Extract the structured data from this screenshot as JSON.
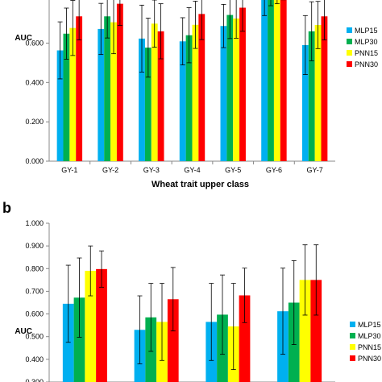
{
  "chart_data": [
    {
      "type": "bar",
      "panel": "",
      "categories": [
        "GY-1",
        "GY-2",
        "GY-3",
        "GY-4",
        "GY-5",
        "GY-6",
        "GY-7"
      ],
      "series": [
        {
          "name": "MLP15",
          "color": "#00b0f0",
          "values": [
            0.563,
            0.672,
            0.623,
            0.609,
            0.687,
            0.84,
            0.59
          ],
          "errors": [
            0.145,
            0.13,
            0.17,
            0.12,
            0.11,
            0.1,
            0.15
          ]
        },
        {
          "name": "MLP30",
          "color": "#00b050",
          "values": [
            0.648,
            0.736,
            0.577,
            0.64,
            0.743,
            0.88,
            0.66
          ],
          "errors": [
            0.13,
            0.11,
            0.15,
            0.14,
            0.12,
            0.09,
            0.15
          ]
        },
        {
          "name": "PNN15",
          "color": "#ffff00",
          "values": [
            0.677,
            0.706,
            0.699,
            0.693,
            0.725,
            0.89,
            0.692
          ],
          "errors": [
            0.14,
            0.16,
            0.12,
            0.12,
            0.1,
            0.09,
            0.12
          ]
        },
        {
          "name": "PNN30",
          "color": "#ff0000",
          "values": [
            0.736,
            0.8,
            0.66,
            0.748,
            0.78,
            0.9,
            0.736
          ],
          "errors": [
            0.12,
            0.11,
            0.14,
            0.13,
            0.12,
            0.08,
            0.12
          ]
        }
      ],
      "ylabel": "AUC",
      "xlabel": "Wheat trait upper class",
      "yticks": [
        "0.000",
        "0.200",
        "0.400",
        "0.600"
      ],
      "ylim": [
        0,
        0.86
      ],
      "grid": false,
      "legend": "right"
    },
    {
      "type": "bar",
      "panel": "b",
      "categories": [
        "",
        "",
        "",
        ""
      ],
      "series": [
        {
          "name": "MLP15",
          "color": "#00b0f0",
          "values": [
            0.645,
            0.53,
            0.565,
            0.612
          ],
          "errors": [
            0.17,
            0.15,
            0.17,
            0.19
          ]
        },
        {
          "name": "MLP30",
          "color": "#00b050",
          "values": [
            0.672,
            0.585,
            0.597,
            0.65
          ],
          "errors": [
            0.175,
            0.15,
            0.175,
            0.185
          ]
        },
        {
          "name": "PNN15",
          "color": "#ffff00",
          "values": [
            0.79,
            0.565,
            0.545,
            0.75
          ],
          "errors": [
            0.11,
            0.17,
            0.19,
            0.155
          ]
        },
        {
          "name": "PNN30",
          "color": "#ff0000",
          "values": [
            0.798,
            0.665,
            0.682,
            0.75
          ],
          "errors": [
            0.08,
            0.14,
            0.12,
            0.155
          ]
        }
      ],
      "ylabel": "AUC",
      "yticks": [
        "0.300",
        "0.400",
        "0.500",
        "0.600",
        "0.700",
        "0.800",
        "0.900",
        "1.000"
      ],
      "ylim": [
        0.3,
        1.0
      ],
      "grid": false,
      "legend": "right"
    }
  ]
}
